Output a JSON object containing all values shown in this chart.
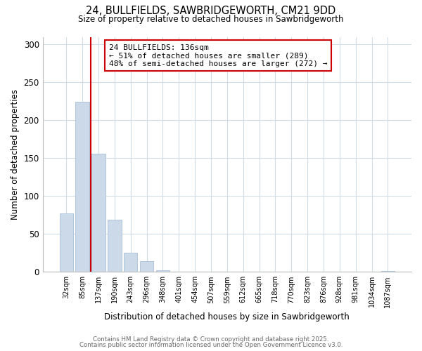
{
  "title": "24, BULLFIELDS, SAWBRIDGEWORTH, CM21 9DD",
  "subtitle": "Size of property relative to detached houses in Sawbridgeworth",
  "xlabel": "Distribution of detached houses by size in Sawbridgeworth",
  "ylabel": "Number of detached properties",
  "bar_color": "#ccd9e8",
  "bar_edge_color": "#aac0d8",
  "bin_labels": [
    "32sqm",
    "85sqm",
    "137sqm",
    "190sqm",
    "243sqm",
    "296sqm",
    "348sqm",
    "401sqm",
    "454sqm",
    "507sqm",
    "559sqm",
    "612sqm",
    "665sqm",
    "718sqm",
    "770sqm",
    "823sqm",
    "876sqm",
    "928sqm",
    "981sqm",
    "1034sqm",
    "1087sqm"
  ],
  "bar_heights": [
    77,
    224,
    156,
    69,
    25,
    14,
    2,
    0,
    0,
    0,
    0,
    0,
    0,
    0,
    0,
    0,
    0,
    0,
    0,
    0,
    1
  ],
  "ylim": [
    0,
    310
  ],
  "yticks": [
    0,
    50,
    100,
    150,
    200,
    250,
    300
  ],
  "property_line_x": 1.5,
  "property_line_color": "#cc0000",
  "annotation_line1": "24 BULLFIELDS: 136sqm",
  "annotation_line2": "← 51% of detached houses are smaller (289)",
  "annotation_line3": "48% of semi-detached houses are larger (272) →",
  "annotation_box_color": "#ffffff",
  "annotation_box_edge_color": "#cc0000",
  "footer_line1": "Contains HM Land Registry data © Crown copyright and database right 2025.",
  "footer_line2": "Contains public sector information licensed under the Open Government Licence v3.0.",
  "background_color": "#ffffff",
  "grid_color": "#d0dce8"
}
